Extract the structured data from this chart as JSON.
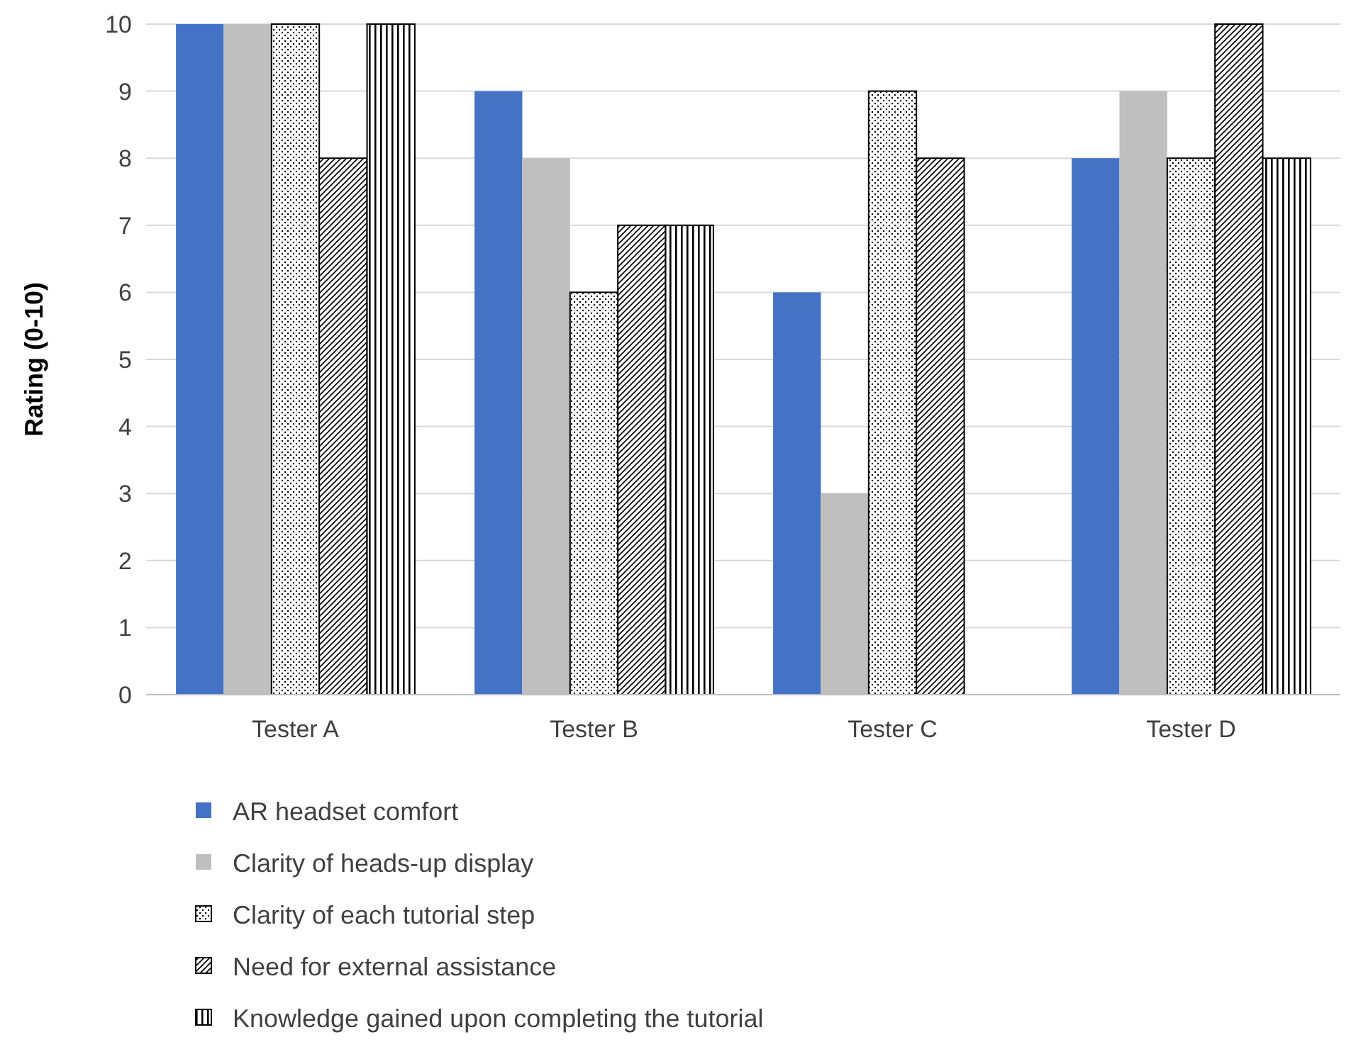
{
  "chart_data": {
    "type": "bar",
    "ylabel": "Rating (0-10)",
    "categories": [
      "Tester A",
      "Tester B",
      "Tester C",
      "Tester D"
    ],
    "ylim": [
      0,
      10
    ],
    "yticks": [
      0,
      1,
      2,
      3,
      4,
      5,
      6,
      7,
      8,
      9,
      10
    ],
    "grid": "y",
    "legend": "bottom",
    "series": [
      {
        "name": "AR headset comfort",
        "color": "#4472c4",
        "values": [
          10,
          9,
          6,
          8
        ]
      },
      {
        "name": "Clarity of heads-up display",
        "color": "#bfbfbf",
        "values": [
          10,
          8,
          3,
          9
        ]
      },
      {
        "name": "Clarity of each tutorial step",
        "color": "#000000",
        "values": [
          10,
          6,
          9,
          8
        ]
      },
      {
        "name": "Need for external assistance",
        "color": "#000000",
        "values": [
          8,
          7,
          8,
          10
        ]
      },
      {
        "name": "Knowledge gained upon completing the tutorial",
        "color": "#000000",
        "values": [
          10,
          7,
          null,
          8
        ]
      }
    ]
  }
}
